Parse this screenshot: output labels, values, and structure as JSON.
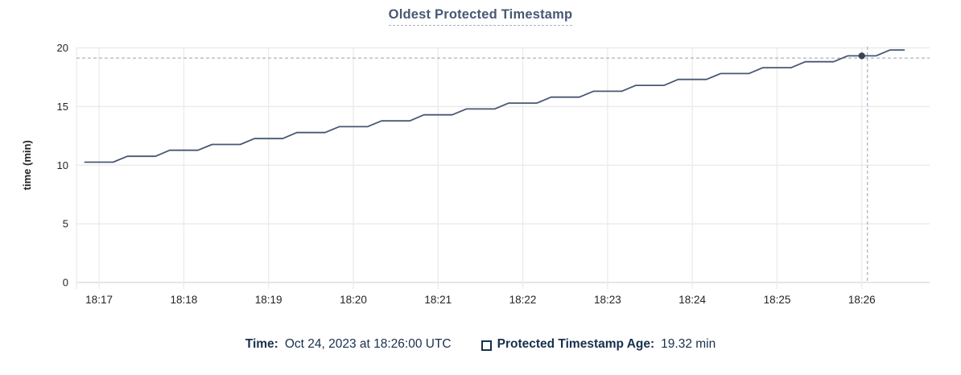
{
  "title": "Oldest Protected Timestamp",
  "legend": {
    "time_label": "Time:",
    "time_value": "Oct 24, 2023 at 18:26:00 UTC",
    "series_label": "Protected Timestamp Age:",
    "series_value": "19.32 min"
  },
  "colors": {
    "title": "#475872",
    "line": "#475872",
    "point": "#394455",
    "grid": "#ececec",
    "axis_line": "#dedede",
    "axis_text": "#242424",
    "legend_text": "#17304e",
    "crosshair": "#8fa5b8"
  },
  "chart_data": {
    "type": "line",
    "title": "Oldest Protected Timestamp",
    "xlabel": "",
    "ylabel": "time (min)",
    "ylim": [
      0,
      20
    ],
    "yticks": [
      0,
      5,
      10,
      15,
      20
    ],
    "xticks": [
      "18:17",
      "18:18",
      "18:19",
      "18:20",
      "18:21",
      "18:22",
      "18:23",
      "18:24",
      "18:25",
      "18:26"
    ],
    "x_domain": [
      "18:16:44",
      "18:26:48"
    ],
    "grid": true,
    "legend_position": "bottom",
    "series": [
      {
        "name": "Protected Timestamp Age",
        "unit": "min",
        "color": "#475872",
        "points": [
          [
            "18:16:50",
            10.26
          ],
          [
            "18:17:00",
            10.26
          ],
          [
            "18:17:10",
            10.26
          ],
          [
            "18:17:20",
            10.76
          ],
          [
            "18:17:30",
            10.76
          ],
          [
            "18:17:40",
            10.76
          ],
          [
            "18:17:50",
            11.27
          ],
          [
            "18:18:00",
            11.27
          ],
          [
            "18:18:10",
            11.27
          ],
          [
            "18:18:20",
            11.77
          ],
          [
            "18:18:30",
            11.77
          ],
          [
            "18:18:40",
            11.77
          ],
          [
            "18:18:50",
            12.27
          ],
          [
            "18:19:00",
            12.27
          ],
          [
            "18:19:10",
            12.27
          ],
          [
            "18:19:20",
            12.78
          ],
          [
            "18:19:30",
            12.78
          ],
          [
            "18:19:40",
            12.78
          ],
          [
            "18:19:50",
            13.28
          ],
          [
            "18:20:00",
            13.28
          ],
          [
            "18:20:10",
            13.28
          ],
          [
            "18:20:20",
            13.78
          ],
          [
            "18:20:30",
            13.78
          ],
          [
            "18:20:40",
            13.78
          ],
          [
            "18:20:50",
            14.29
          ],
          [
            "18:21:00",
            14.29
          ],
          [
            "18:21:10",
            14.29
          ],
          [
            "18:21:20",
            14.79
          ],
          [
            "18:21:30",
            14.79
          ],
          [
            "18:21:40",
            14.79
          ],
          [
            "18:21:50",
            15.29
          ],
          [
            "18:22:00",
            15.29
          ],
          [
            "18:22:10",
            15.29
          ],
          [
            "18:22:20",
            15.8
          ],
          [
            "18:22:30",
            15.8
          ],
          [
            "18:22:40",
            15.8
          ],
          [
            "18:22:50",
            16.3
          ],
          [
            "18:23:00",
            16.3
          ],
          [
            "18:23:10",
            16.3
          ],
          [
            "18:23:20",
            16.8
          ],
          [
            "18:23:30",
            16.8
          ],
          [
            "18:23:40",
            16.8
          ],
          [
            "18:23:50",
            17.31
          ],
          [
            "18:24:00",
            17.31
          ],
          [
            "18:24:10",
            17.31
          ],
          [
            "18:24:20",
            17.81
          ],
          [
            "18:24:30",
            17.81
          ],
          [
            "18:24:40",
            17.81
          ],
          [
            "18:24:50",
            18.31
          ],
          [
            "18:25:00",
            18.31
          ],
          [
            "18:25:10",
            18.31
          ],
          [
            "18:25:20",
            18.82
          ],
          [
            "18:25:30",
            18.82
          ],
          [
            "18:25:40",
            18.82
          ],
          [
            "18:25:50",
            19.32
          ],
          [
            "18:26:00",
            19.32
          ],
          [
            "18:26:10",
            19.32
          ],
          [
            "18:26:20",
            19.82
          ],
          [
            "18:26:30",
            19.82
          ]
        ]
      }
    ],
    "highlight_point": {
      "time": "18:26:00",
      "value": 19.32
    },
    "crosshair": {
      "time": "18:26:04",
      "value": 19.13
    }
  }
}
